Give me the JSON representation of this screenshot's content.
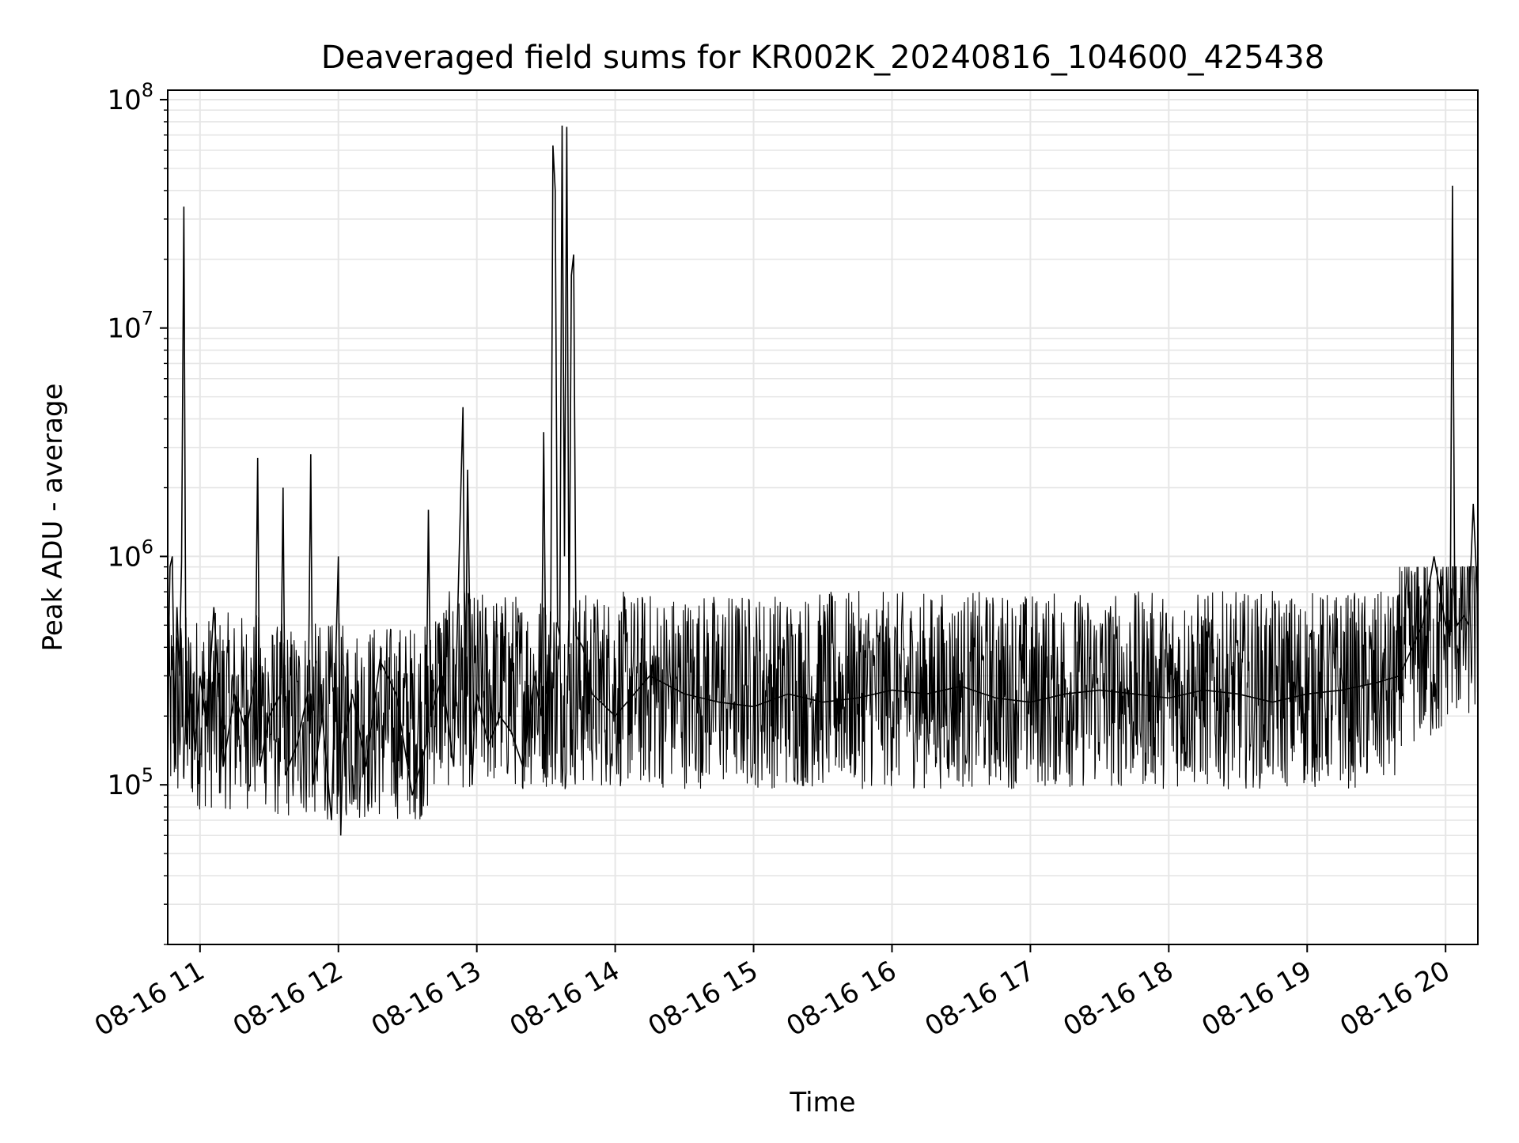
{
  "chart_data": {
    "type": "line",
    "title": "Deaveraged field sums for KR002K_20240816_104600_425438",
    "xlabel": "Time",
    "ylabel": "Peak ADU - average",
    "xlim": [
      "08-16 10:46",
      "08-16 20:14"
    ],
    "ylim": [
      20000,
      110000000
    ],
    "yscale": "log",
    "grid": true,
    "grid_minor": true,
    "line_color": "#000000",
    "x_ticks": [
      "08-16 11",
      "08-16 12",
      "08-16 13",
      "08-16 14",
      "08-16 15",
      "08-16 16",
      "08-16 17",
      "08-16 18",
      "08-16 19",
      "08-16 20"
    ],
    "y_ticks": [
      {
        "value": 100000,
        "base": "10",
        "exp": "5"
      },
      {
        "value": 1000000,
        "base": "10",
        "exp": "6"
      },
      {
        "value": 10000000,
        "base": "10",
        "exp": "7"
      },
      {
        "value": 100000000,
        "base": "10",
        "exp": "8"
      }
    ],
    "series": [
      {
        "x": [
          "08-16 10:46",
          "08-16 10:47",
          "08-16 10:48",
          "08-16 10:49",
          "08-16 10:50",
          "08-16 10:51",
          "08-16 10:52",
          "08-16 10:53",
          "08-16 10:54",
          "08-16 10:55",
          "08-16 10:56",
          "08-16 10:58",
          "08-16 11:00",
          "08-16 11:03",
          "08-16 11:06",
          "08-16 11:10",
          "08-16 11:15",
          "08-16 11:20",
          "08-16 11:24",
          "08-16 11:25",
          "08-16 11:26",
          "08-16 11:30",
          "08-16 11:35",
          "08-16 11:36",
          "08-16 11:37",
          "08-16 11:42",
          "08-16 11:47",
          "08-16 11:48",
          "08-16 11:49",
          "08-16 11:53",
          "08-16 11:57",
          "08-16 12:00",
          "08-16 12:01",
          "08-16 12:02",
          "08-16 12:06",
          "08-16 12:12",
          "08-16 12:18",
          "08-16 12:25",
          "08-16 12:32",
          "08-16 12:38",
          "08-16 12:39",
          "08-16 12:40",
          "08-16 12:45",
          "08-16 12:50",
          "08-16 12:54",
          "08-16 12:55",
          "08-16 12:56",
          "08-16 12:58",
          "08-16 12:59",
          "08-16 13:00",
          "08-16 13:05",
          "08-16 13:10",
          "08-16 13:15",
          "08-16 13:20",
          "08-16 13:25",
          "08-16 13:28",
          "08-16 13:29",
          "08-16 13:30",
          "08-16 13:32",
          "08-16 13:33",
          "08-16 13:34",
          "08-16 13:35",
          "08-16 13:36",
          "08-16 13:37",
          "08-16 13:38",
          "08-16 13:39",
          "08-16 13:40",
          "08-16 13:41",
          "08-16 13:42",
          "08-16 13:43",
          "08-16 13:46",
          "08-16 13:50",
          "08-16 14:00",
          "08-16 14:15",
          "08-16 14:30",
          "08-16 14:45",
          "08-16 15:00",
          "08-16 15:15",
          "08-16 15:30",
          "08-16 15:45",
          "08-16 16:00",
          "08-16 16:15",
          "08-16 16:30",
          "08-16 16:45",
          "08-16 17:00",
          "08-16 17:15",
          "08-16 17:30",
          "08-16 17:45",
          "08-16 18:00",
          "08-16 18:15",
          "08-16 18:30",
          "08-16 18:45",
          "08-16 19:00",
          "08-16 19:15",
          "08-16 19:30",
          "08-16 19:40",
          "08-16 19:50",
          "08-16 19:55",
          "08-16 20:00",
          "08-16 20:02",
          "08-16 20:03",
          "08-16 20:04",
          "08-16 20:05",
          "08-16 20:08",
          "08-16 20:10",
          "08-16 20:12",
          "08-16 20:14"
        ],
        "y": [
          260000,
          900000,
          1000000,
          180000,
          600000,
          300000,
          950000,
          34000000,
          150000,
          200000,
          250000,
          140000,
          300000,
          180000,
          600000,
          120000,
          250000,
          170000,
          300000,
          2700000,
          120000,
          200000,
          250000,
          2000000,
          110000,
          150000,
          260000,
          2800000,
          100000,
          200000,
          70000,
          1000000,
          60000,
          150000,
          250000,
          120000,
          350000,
          250000,
          90000,
          150000,
          1600000,
          200000,
          300000,
          120000,
          4500000,
          150000,
          2400000,
          100000,
          200000,
          250000,
          150000,
          200000,
          170000,
          120000,
          300000,
          200000,
          3500000,
          250000,
          400000,
          63000000,
          40000000,
          500000,
          450000,
          77000000,
          1000000,
          76000000,
          400000,
          17000000,
          21000000,
          450000,
          400000,
          250000,
          200000,
          300000,
          250000,
          230000,
          220000,
          250000,
          230000,
          240000,
          260000,
          250000,
          270000,
          240000,
          230000,
          250000,
          260000,
          250000,
          240000,
          260000,
          250000,
          230000,
          250000,
          260000,
          280000,
          300000,
          500000,
          1000000,
          500000,
          450000,
          42000000,
          600000,
          500000,
          550000,
          500000,
          1700000,
          600000
        ]
      }
    ]
  }
}
